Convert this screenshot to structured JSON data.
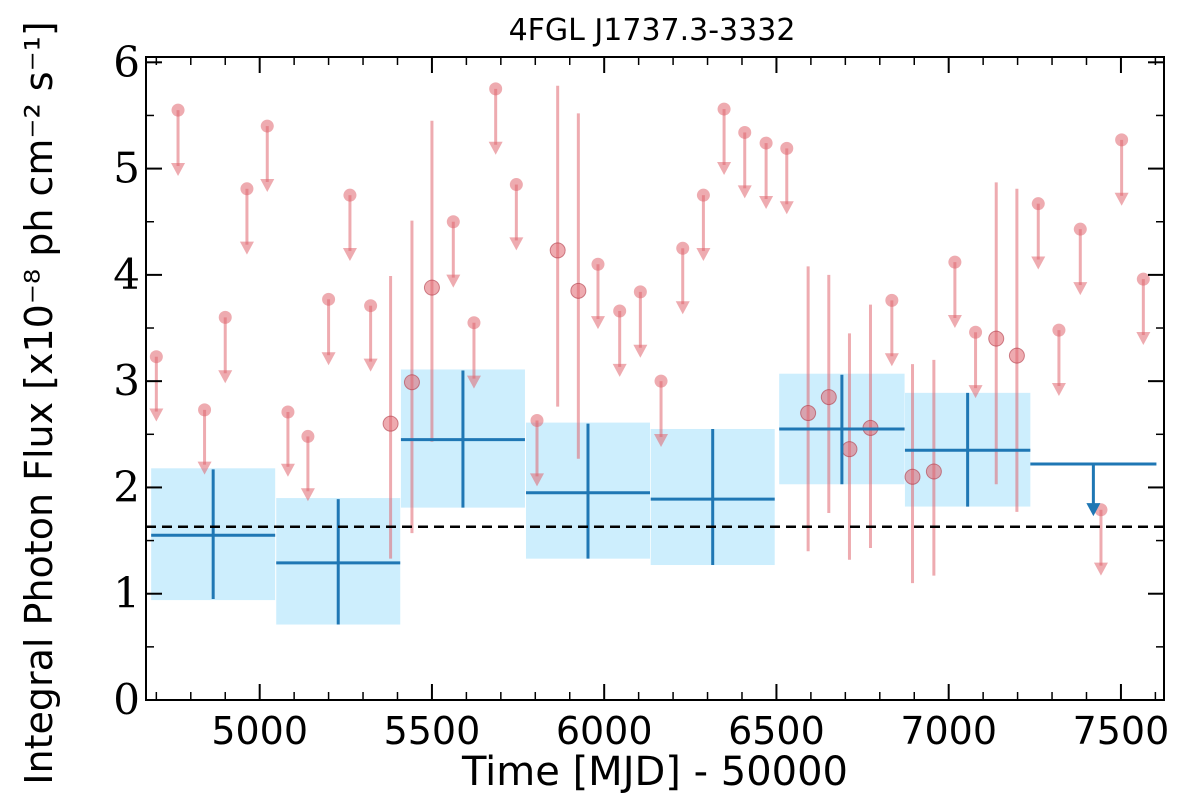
{
  "chart_data": {
    "type": "scatter",
    "title": "4FGL J1737.3-3332",
    "xlabel": "Time [MJD] - 50000",
    "ylabel": "Integral Photon Flux [x10⁻⁸ ph cm⁻² s⁻¹]",
    "xlim": [
      4670,
      7625
    ],
    "ylim": [
      0,
      6.05
    ],
    "xticks": [
      5000,
      5500,
      6000,
      6500,
      7000,
      7500
    ],
    "xtick_labels": [
      "5000",
      "5500",
      "6000",
      "6500",
      "7000",
      "7500"
    ],
    "yticks": [
      0,
      1,
      2,
      3,
      4,
      5,
      6
    ],
    "ytick_labels": [
      "0",
      "1",
      "2",
      "3",
      "4",
      "5",
      "6"
    ],
    "grid": false,
    "legend": null,
    "reference_line": {
      "y": 1.63,
      "style": "dashed",
      "color": "#000000"
    },
    "colors": {
      "fine": "#e06670",
      "coarse": "#1f77b4",
      "band": "#cdeefd"
    },
    "coarse_bins": [
      {
        "x": 4865,
        "xerr": 180,
        "y": 1.55,
        "ylo": 0.95,
        "yhi": 2.17,
        "band": [
          0.94,
          2.18
        ]
      },
      {
        "x": 5228,
        "xerr": 180,
        "y": 1.29,
        "ylo": 0.71,
        "yhi": 1.89,
        "band": [
          0.71,
          1.9
        ]
      },
      {
        "x": 5590,
        "xerr": 180,
        "y": 2.45,
        "ylo": 1.81,
        "yhi": 3.1,
        "band": [
          1.81,
          3.11
        ]
      },
      {
        "x": 5953,
        "xerr": 180,
        "y": 1.95,
        "ylo": 1.33,
        "yhi": 2.6,
        "band": [
          1.33,
          2.61
        ]
      },
      {
        "x": 6315,
        "xerr": 180,
        "y": 1.89,
        "ylo": 1.27,
        "yhi": 2.55,
        "band": [
          1.27,
          2.55
        ]
      },
      {
        "x": 6690,
        "xerr": 182,
        "y": 2.55,
        "ylo": 2.03,
        "yhi": 3.06,
        "band": [
          2.03,
          3.07
        ]
      },
      {
        "x": 7055,
        "xerr": 182,
        "y": 2.35,
        "ylo": 1.82,
        "yhi": 2.89,
        "band": [
          1.82,
          2.89
        ]
      },
      {
        "x": 7420,
        "xerr": 183,
        "upper_limit": 2.22,
        "arrow_to": 1.73
      }
    ],
    "fine_bins": [
      {
        "x": 4700,
        "ul": 3.23,
        "arrow_to": 2.62
      },
      {
        "x": 4763,
        "ul": 5.55,
        "arrow_to": 4.93
      },
      {
        "x": 4840,
        "ul": 2.73,
        "arrow_to": 2.12
      },
      {
        "x": 4900,
        "ul": 3.6,
        "arrow_to": 2.98
      },
      {
        "x": 4963,
        "ul": 4.81,
        "arrow_to": 4.19
      },
      {
        "x": 5022,
        "ul": 5.4,
        "arrow_to": 4.78
      },
      {
        "x": 5082,
        "ul": 2.71,
        "arrow_to": 2.1
      },
      {
        "x": 5140,
        "ul": 2.48,
        "arrow_to": 1.87
      },
      {
        "x": 5200,
        "ul": 3.77,
        "arrow_to": 3.15
      },
      {
        "x": 5262,
        "ul": 4.75,
        "arrow_to": 4.13
      },
      {
        "x": 5322,
        "ul": 3.71,
        "arrow_to": 3.09
      },
      {
        "x": 5380,
        "y": 2.6,
        "ylo": 1.33,
        "yhi": 3.99
      },
      {
        "x": 5442,
        "y": 2.99,
        "ylo": 1.57,
        "yhi": 4.51
      },
      {
        "x": 5500,
        "y": 3.88,
        "ylo": 2.43,
        "yhi": 5.45
      },
      {
        "x": 5562,
        "ul": 4.5,
        "arrow_to": 3.88
      },
      {
        "x": 5622,
        "ul": 3.55,
        "arrow_to": 2.93
      },
      {
        "x": 5685,
        "ul": 5.75,
        "arrow_to": 5.13
      },
      {
        "x": 5745,
        "ul": 4.85,
        "arrow_to": 4.23
      },
      {
        "x": 5805,
        "ul": 2.63,
        "arrow_to": 2.01
      },
      {
        "x": 5865,
        "y": 4.23,
        "ylo": 2.76,
        "yhi": 5.78
      },
      {
        "x": 5925,
        "y": 3.85,
        "ylo": 2.27,
        "yhi": 5.52
      },
      {
        "x": 5982,
        "ul": 4.1,
        "arrow_to": 3.49
      },
      {
        "x": 6045,
        "ul": 3.66,
        "arrow_to": 3.04
      },
      {
        "x": 6105,
        "ul": 3.84,
        "arrow_to": 3.22
      },
      {
        "x": 6165,
        "ul": 3.0,
        "arrow_to": 2.38
      },
      {
        "x": 6228,
        "ul": 4.25,
        "arrow_to": 3.63
      },
      {
        "x": 6288,
        "ul": 4.75,
        "arrow_to": 4.13
      },
      {
        "x": 6348,
        "ul": 5.56,
        "arrow_to": 4.94
      },
      {
        "x": 6408,
        "ul": 5.34,
        "arrow_to": 4.72
      },
      {
        "x": 6470,
        "ul": 5.24,
        "arrow_to": 4.62
      },
      {
        "x": 6530,
        "ul": 5.19,
        "arrow_to": 4.57
      },
      {
        "x": 6592,
        "y": 2.7,
        "ylo": 1.4,
        "yhi": 4.08
      },
      {
        "x": 6652,
        "y": 2.85,
        "ylo": 1.76,
        "yhi": 4.0
      },
      {
        "x": 6712,
        "y": 2.36,
        "ylo": 1.32,
        "yhi": 3.45
      },
      {
        "x": 6773,
        "y": 2.56,
        "ylo": 1.43,
        "yhi": 3.72
      },
      {
        "x": 6835,
        "ul": 3.76,
        "arrow_to": 3.14
      },
      {
        "x": 6895,
        "y": 2.1,
        "ylo": 1.1,
        "yhi": 3.16
      },
      {
        "x": 6957,
        "y": 2.15,
        "ylo": 1.17,
        "yhi": 3.2
      },
      {
        "x": 7018,
        "ul": 4.12,
        "arrow_to": 3.5
      },
      {
        "x": 7078,
        "ul": 3.46,
        "arrow_to": 2.84
      },
      {
        "x": 7138,
        "y": 3.4,
        "ylo": 2.03,
        "yhi": 4.87
      },
      {
        "x": 7198,
        "y": 3.24,
        "ylo": 1.77,
        "yhi": 4.81
      },
      {
        "x": 7260,
        "ul": 4.67,
        "arrow_to": 4.05
      },
      {
        "x": 7320,
        "ul": 3.48,
        "arrow_to": 2.86
      },
      {
        "x": 7382,
        "ul": 4.43,
        "arrow_to": 3.81
      },
      {
        "x": 7442,
        "ul": 1.79,
        "arrow_to": 1.17
      },
      {
        "x": 7502,
        "ul": 5.27,
        "arrow_to": 4.65
      },
      {
        "x": 7565,
        "ul": 3.96,
        "arrow_to": 3.34
      }
    ]
  }
}
